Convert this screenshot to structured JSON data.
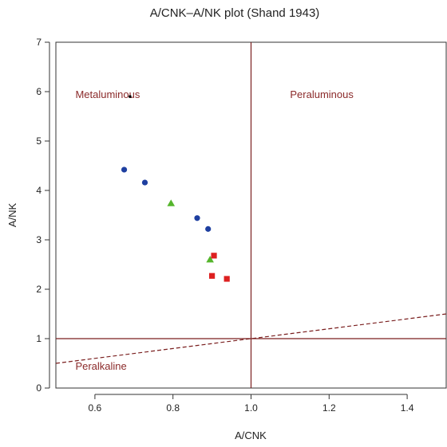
{
  "chart_data": {
    "type": "scatter",
    "title": "A/CNK–A/NK plot (Shand 1943)",
    "xlabel": "A/CNK",
    "ylabel": "A/NK",
    "xlim": [
      0.5,
      1.5
    ],
    "ylim": [
      0,
      7
    ],
    "x_ticks": [
      "0.6",
      "0.8",
      "1.0",
      "1.2",
      "1.4"
    ],
    "x_tick_values": [
      0.6,
      0.8,
      1.0,
      1.2,
      1.4
    ],
    "y_ticks": [
      "0",
      "1",
      "2",
      "3",
      "4",
      "5",
      "6",
      "7"
    ],
    "y_tick_values": [
      0,
      1,
      2,
      3,
      4,
      5,
      6,
      7
    ],
    "grid": false,
    "legend": "none",
    "region_labels": [
      {
        "text": "Metaluminous",
        "x": 0.55,
        "y": 5.95
      },
      {
        "text": "Peraluminous",
        "x": 1.1,
        "y": 5.95
      },
      {
        "text": "Peralkaline",
        "x": 0.55,
        "y": 0.45
      }
    ],
    "reference_lines": {
      "vertical_x": 1.0,
      "horizontal_y": 1.0,
      "dashed_line": [
        [
          0.5,
          0.5
        ],
        [
          1.5,
          1.5
        ]
      ]
    },
    "series": [
      {
        "marker": "circle",
        "color": "#1e3fa0",
        "points": [
          [
            0.675,
            4.42
          ],
          [
            0.728,
            4.16
          ],
          [
            0.862,
            3.44
          ],
          [
            0.89,
            3.22
          ]
        ]
      },
      {
        "marker": "triangle",
        "color": "#55b52c",
        "points": [
          [
            0.795,
            3.74
          ],
          [
            0.895,
            2.6
          ]
        ]
      },
      {
        "marker": "square",
        "color": "#dd2020",
        "points": [
          [
            0.905,
            2.68
          ],
          [
            0.9,
            2.27
          ],
          [
            0.938,
            2.21
          ]
        ]
      },
      {
        "marker": "dot",
        "color": "#000000",
        "points": [
          [
            0.69,
            5.9
          ]
        ]
      }
    ],
    "colors": {
      "frame": "#333333",
      "reference": "#7a1f1f",
      "region_text": "#8b2a2a"
    }
  }
}
